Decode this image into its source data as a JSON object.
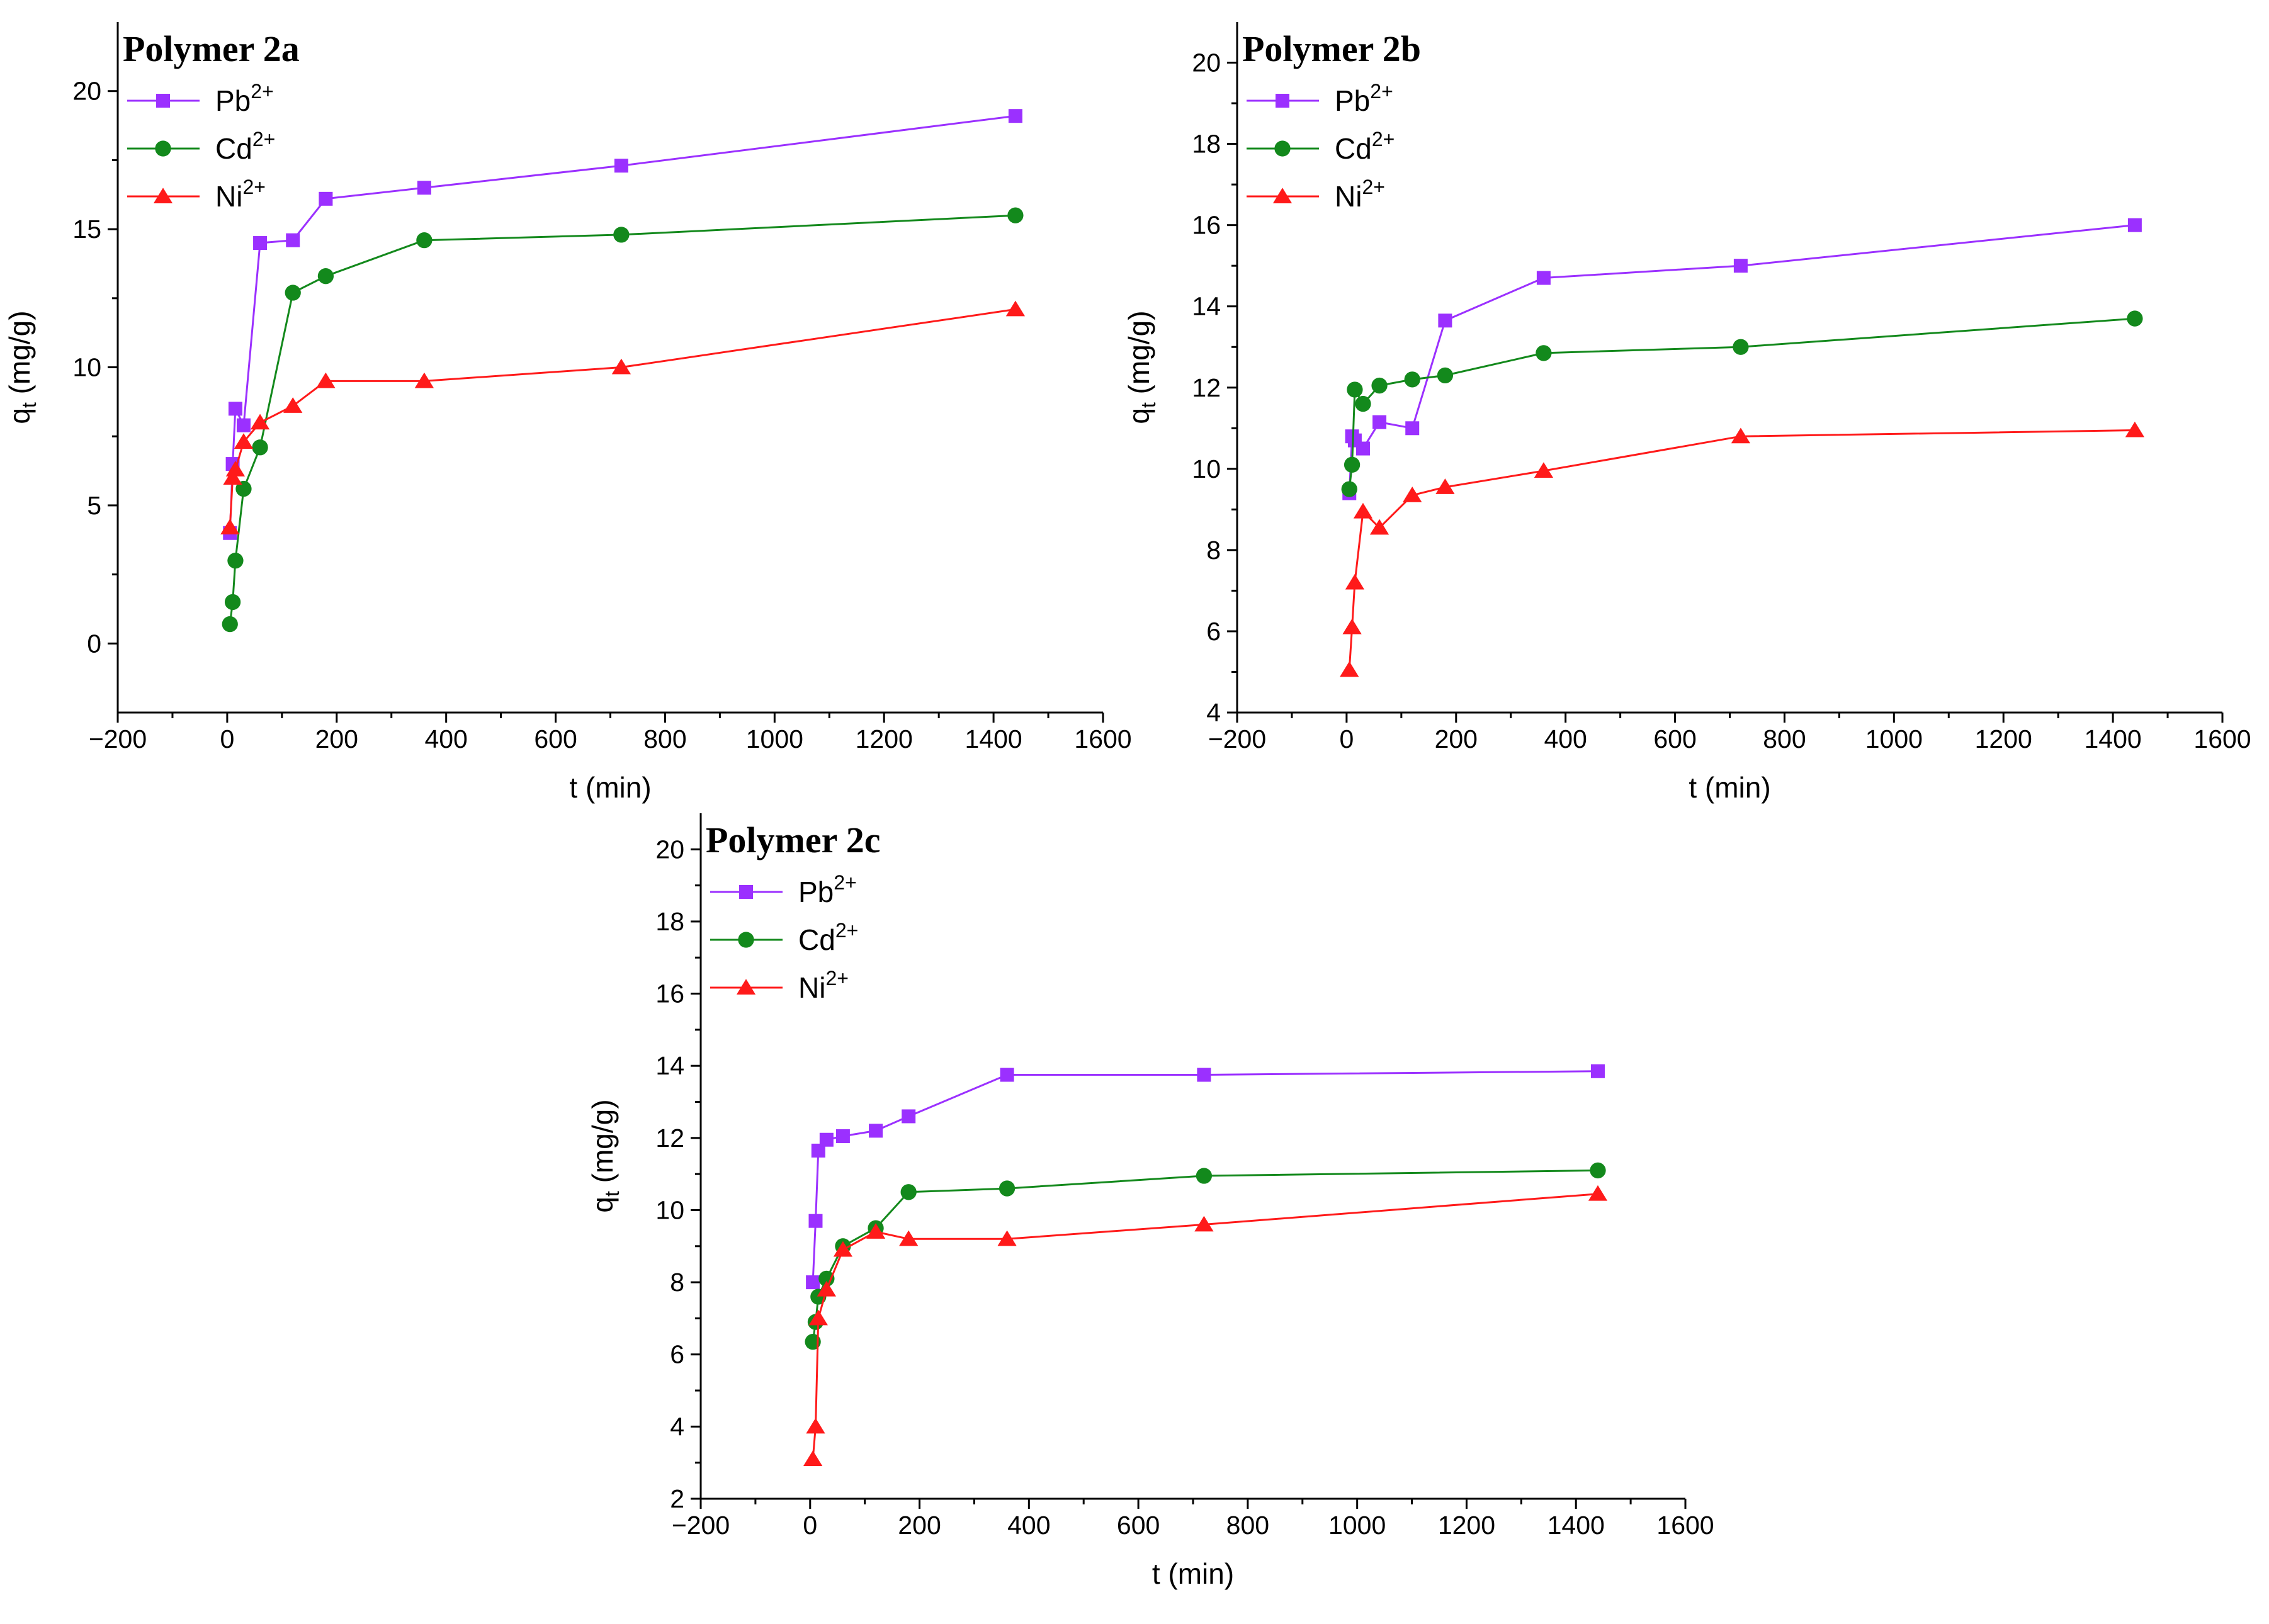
{
  "colors": {
    "Pb": "#9b30ff",
    "Cd": "#13891c",
    "Ni": "#ff1a1a",
    "axis": "#000000"
  },
  "chart_data": [
    {
      "type": "line",
      "title": "Polymer 2a",
      "xlabel": "t (min)",
      "ylabel": "q",
      "ylabel_sub": "t",
      "ylabel_unit": " (mg/g)",
      "xlim": [
        -200,
        1600
      ],
      "ylim": [
        -2.5,
        22.5
      ],
      "xticks": [
        -200,
        0,
        200,
        400,
        600,
        800,
        1000,
        1200,
        1400,
        1600
      ],
      "yticks": [
        0,
        5,
        10,
        15,
        20
      ],
      "legend_position": "top-left",
      "series": [
        {
          "name": "Pb",
          "charge": "2+",
          "marker": "square",
          "color": "#9b30ff",
          "x": [
            5,
            10,
            15,
            30,
            60,
            120,
            180,
            360,
            720,
            1440
          ],
          "y": [
            4.0,
            6.5,
            8.5,
            7.9,
            14.5,
            14.6,
            16.1,
            16.5,
            17.3,
            19.1
          ]
        },
        {
          "name": "Cd",
          "charge": "2+",
          "marker": "circle",
          "color": "#13891c",
          "x": [
            5,
            10,
            15,
            30,
            60,
            120,
            180,
            360,
            720,
            1440
          ],
          "y": [
            0.7,
            1.5,
            3.0,
            5.6,
            7.1,
            12.7,
            13.3,
            14.6,
            14.8,
            15.5
          ]
        },
        {
          "name": "Ni",
          "charge": "2+",
          "marker": "triangle",
          "color": "#ff1a1a",
          "x": [
            5,
            10,
            15,
            30,
            60,
            120,
            180,
            360,
            720,
            1440
          ],
          "y": [
            4.2,
            6.0,
            6.3,
            7.3,
            8.0,
            8.6,
            9.5,
            9.5,
            10.0,
            12.1
          ]
        }
      ]
    },
    {
      "type": "line",
      "title": "Polymer 2b",
      "xlabel": "t (min)",
      "ylabel": "q",
      "ylabel_sub": "t",
      "ylabel_unit": " (mg/g)",
      "xlim": [
        -200,
        1600
      ],
      "ylim": [
        4,
        21
      ],
      "xticks": [
        -200,
        0,
        200,
        400,
        600,
        800,
        1000,
        1200,
        1400,
        1600
      ],
      "yticks": [
        4,
        6,
        8,
        10,
        12,
        14,
        16,
        18,
        20
      ],
      "legend_position": "top-left",
      "series": [
        {
          "name": "Pb",
          "charge": "2+",
          "marker": "square",
          "color": "#9b30ff",
          "x": [
            5,
            10,
            15,
            30,
            60,
            120,
            180,
            360,
            720,
            1440
          ],
          "y": [
            9.4,
            10.8,
            10.7,
            10.5,
            11.15,
            11.0,
            13.65,
            14.7,
            15.0,
            16.0
          ]
        },
        {
          "name": "Cd",
          "charge": "2+",
          "marker": "circle",
          "color": "#13891c",
          "x": [
            5,
            10,
            15,
            30,
            60,
            120,
            180,
            360,
            720,
            1440
          ],
          "y": [
            9.5,
            10.1,
            11.95,
            11.6,
            12.05,
            12.2,
            12.3,
            12.85,
            13.0,
            13.7
          ]
        },
        {
          "name": "Ni",
          "charge": "2+",
          "marker": "triangle",
          "color": "#ff1a1a",
          "x": [
            5,
            10,
            15,
            30,
            60,
            120,
            180,
            360,
            720,
            1440
          ],
          "y": [
            5.05,
            6.1,
            7.2,
            8.95,
            8.55,
            9.35,
            9.55,
            9.95,
            10.8,
            10.95
          ]
        }
      ]
    },
    {
      "type": "line",
      "title": "Polymer 2c",
      "xlabel": "t (min)",
      "ylabel": "q",
      "ylabel_sub": "t",
      "ylabel_unit": " (mg/g)",
      "xlim": [
        -200,
        1600
      ],
      "ylim": [
        2,
        21
      ],
      "xticks": [
        -200,
        0,
        200,
        400,
        600,
        800,
        1000,
        1200,
        1400,
        1600
      ],
      "yticks": [
        2,
        4,
        6,
        8,
        10,
        12,
        14,
        16,
        18,
        20
      ],
      "legend_position": "top-left",
      "series": [
        {
          "name": "Pb",
          "charge": "2+",
          "marker": "square",
          "color": "#9b30ff",
          "x": [
            5,
            10,
            15,
            30,
            60,
            120,
            180,
            360,
            720,
            1440
          ],
          "y": [
            8.0,
            9.7,
            11.65,
            11.95,
            12.05,
            12.2,
            12.6,
            13.75,
            13.75,
            13.85
          ]
        },
        {
          "name": "Cd",
          "charge": "2+",
          "marker": "circle",
          "color": "#13891c",
          "x": [
            5,
            10,
            15,
            30,
            60,
            120,
            180,
            360,
            720,
            1440
          ],
          "y": [
            6.35,
            6.9,
            7.6,
            8.1,
            9.0,
            9.5,
            10.5,
            10.6,
            10.95,
            11.1
          ]
        },
        {
          "name": "Ni",
          "charge": "2+",
          "marker": "triangle",
          "color": "#ff1a1a",
          "x": [
            5,
            10,
            15,
            30,
            60,
            120,
            180,
            360,
            720,
            1440
          ],
          "y": [
            3.1,
            4.0,
            7.0,
            7.8,
            8.9,
            9.4,
            9.2,
            9.2,
            9.6,
            10.45
          ]
        }
      ]
    }
  ]
}
